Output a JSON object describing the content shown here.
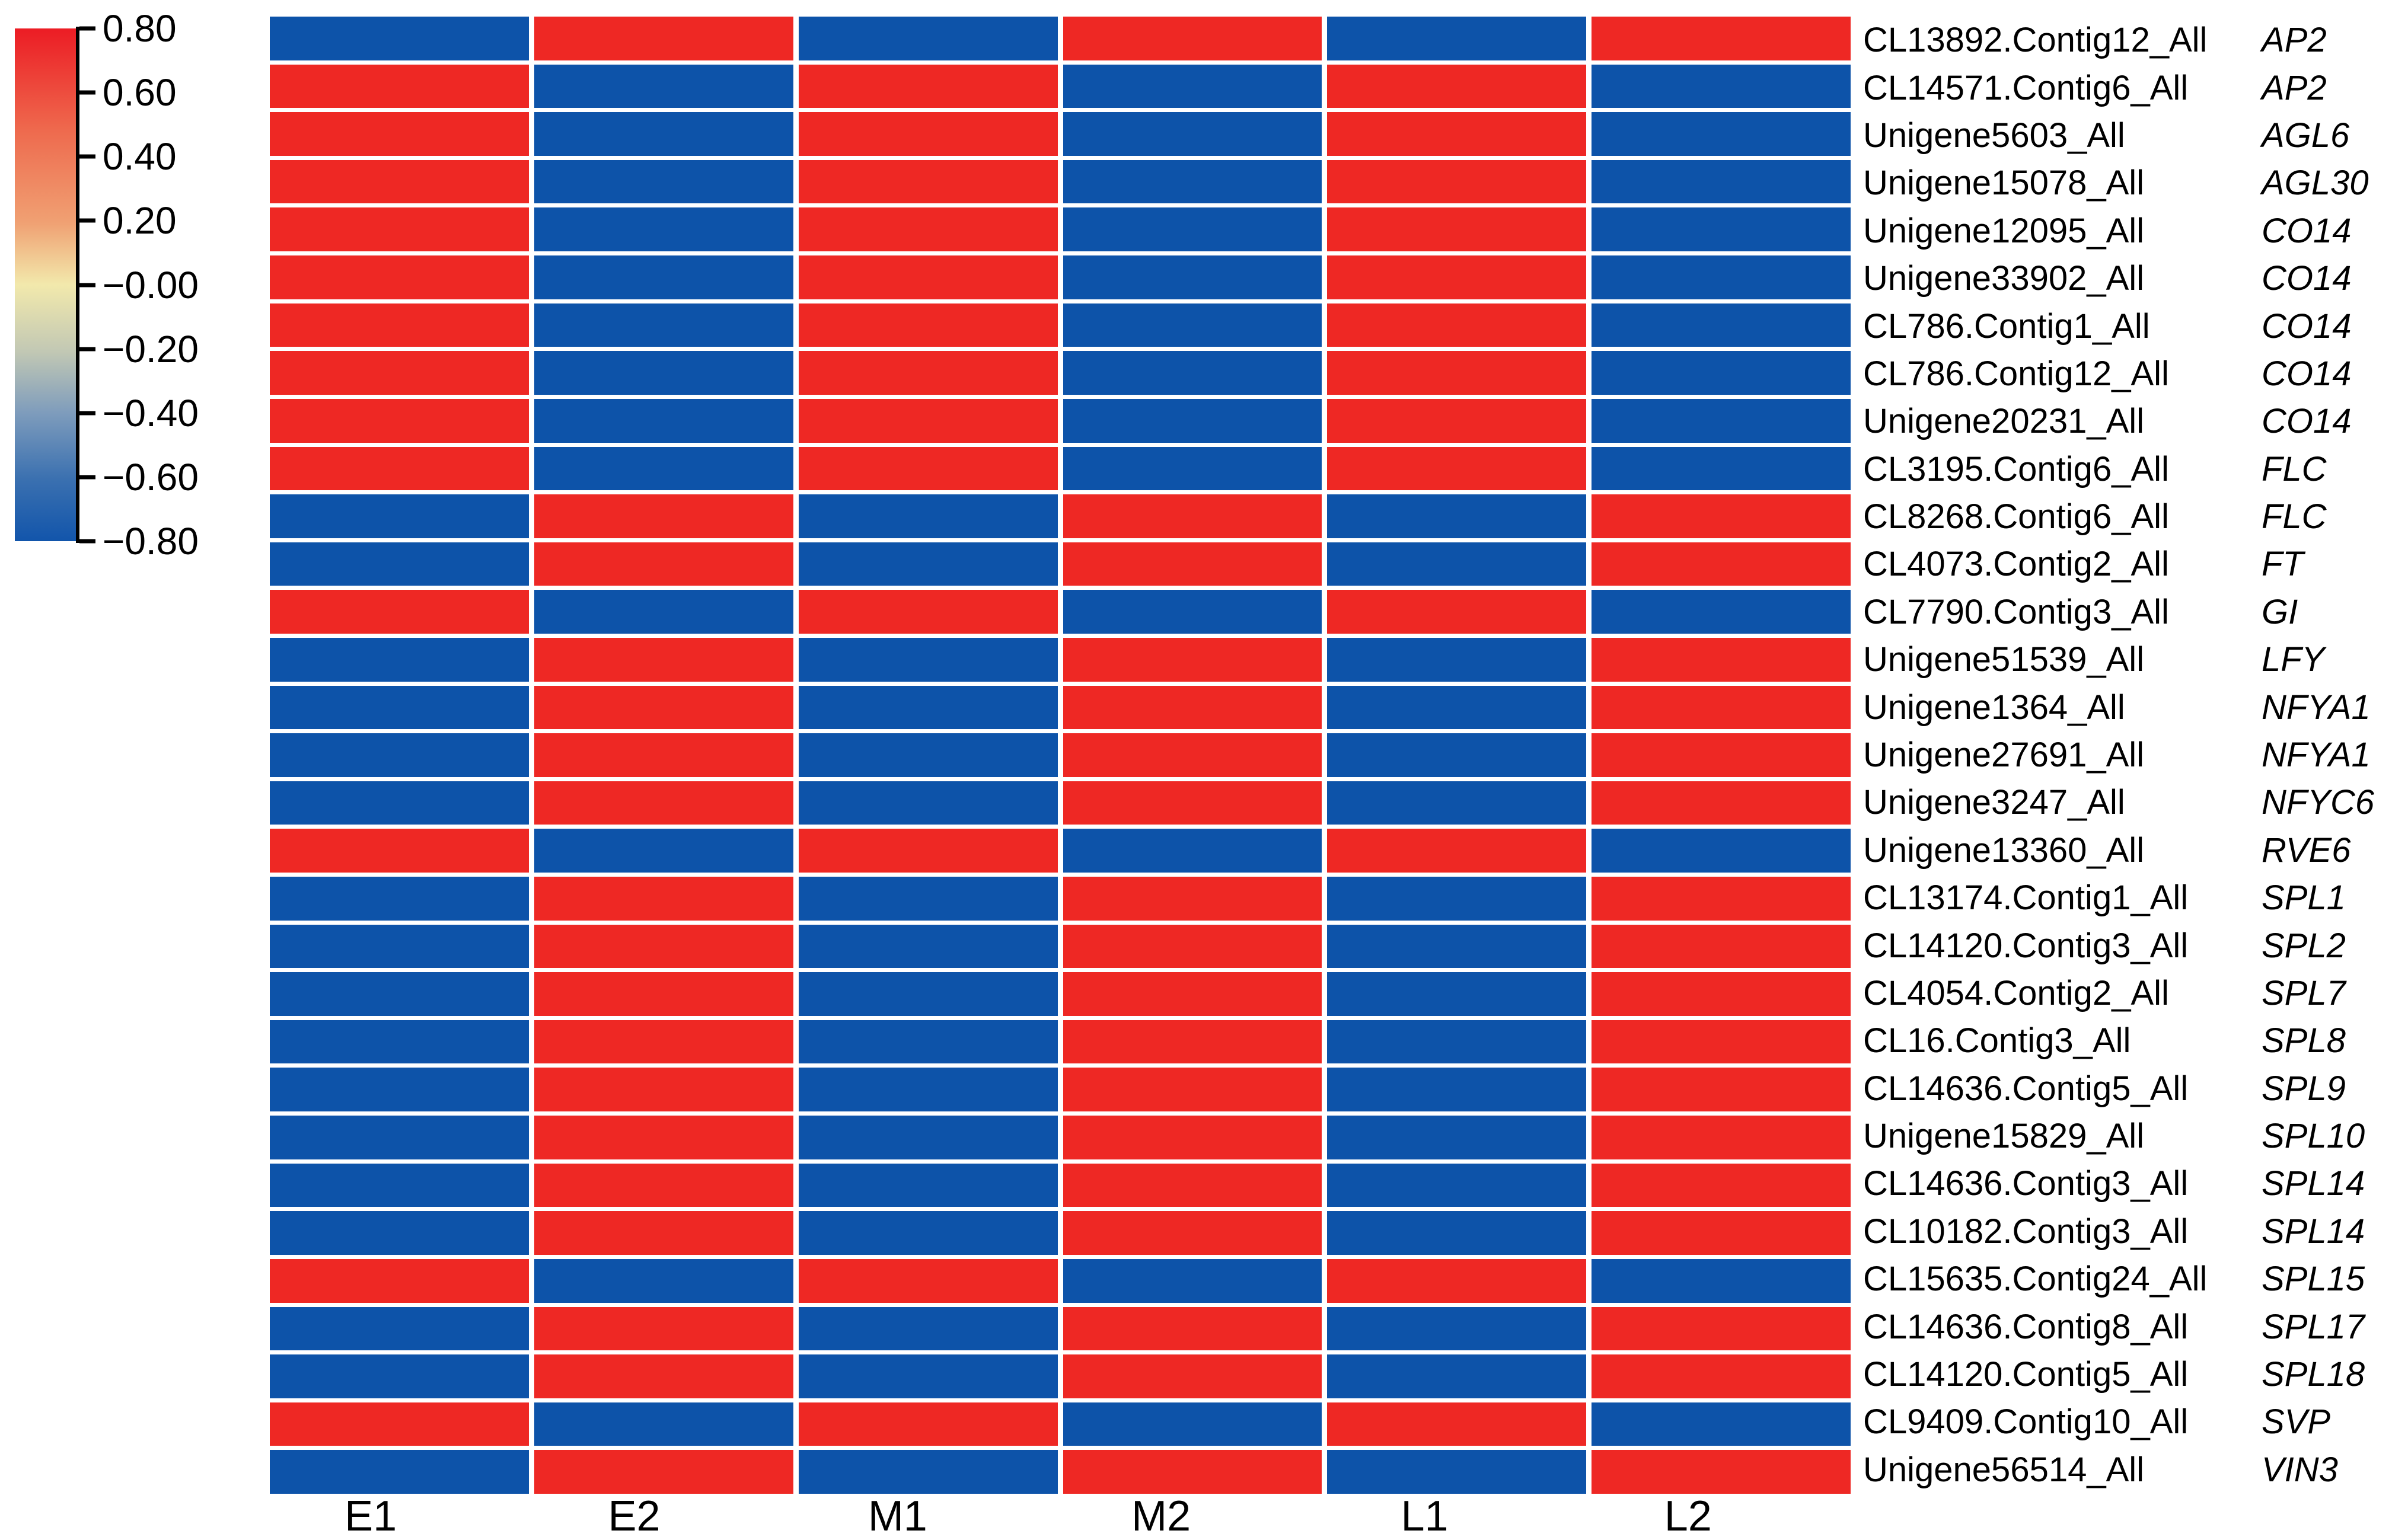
{
  "figure": {
    "background": "#FFFFFF"
  },
  "chart_data": {
    "type": "heatmap",
    "title": "",
    "xlabel": "",
    "ylabel": "",
    "grid": false,
    "legend_position": "left",
    "columns": [
      "E1",
      "E2",
      "M1",
      "M2",
      "L1",
      "L2"
    ],
    "rows": [
      {
        "id": "CL13892.Contig12_All",
        "gene": "AP2",
        "values": [
          -0.8,
          0.8,
          -0.8,
          0.8,
          -0.8,
          0.8
        ]
      },
      {
        "id": "CL14571.Contig6_All",
        "gene": "AP2",
        "values": [
          0.8,
          -0.8,
          0.8,
          -0.8,
          0.8,
          -0.8
        ]
      },
      {
        "id": "Unigene5603_All",
        "gene": "AGL6",
        "values": [
          0.8,
          -0.8,
          0.8,
          -0.8,
          0.8,
          -0.8
        ]
      },
      {
        "id": "Unigene15078_All",
        "gene": "AGL30",
        "values": [
          0.8,
          -0.8,
          0.8,
          -0.8,
          0.8,
          -0.8
        ]
      },
      {
        "id": "Unigene12095_All",
        "gene": "CO14",
        "values": [
          0.8,
          -0.8,
          0.8,
          -0.8,
          0.8,
          -0.8
        ]
      },
      {
        "id": "Unigene33902_All",
        "gene": "CO14",
        "values": [
          0.8,
          -0.8,
          0.8,
          -0.8,
          0.8,
          -0.8
        ]
      },
      {
        "id": "CL786.Contig1_All",
        "gene": "CO14",
        "values": [
          0.8,
          -0.8,
          0.8,
          -0.8,
          0.8,
          -0.8
        ]
      },
      {
        "id": "CL786.Contig12_All",
        "gene": "CO14",
        "values": [
          0.8,
          -0.8,
          0.8,
          -0.8,
          0.8,
          -0.8
        ]
      },
      {
        "id": "Unigene20231_All",
        "gene": "CO14",
        "values": [
          0.8,
          -0.8,
          0.8,
          -0.8,
          0.8,
          -0.8
        ]
      },
      {
        "id": "CL3195.Contig6_All",
        "gene": "FLC",
        "values": [
          0.8,
          -0.8,
          0.8,
          -0.8,
          0.8,
          -0.8
        ]
      },
      {
        "id": "CL8268.Contig6_All",
        "gene": "FLC",
        "values": [
          -0.8,
          0.8,
          -0.8,
          0.8,
          -0.8,
          0.8
        ]
      },
      {
        "id": "CL4073.Contig2_All",
        "gene": "FT",
        "values": [
          -0.8,
          0.8,
          -0.8,
          0.8,
          -0.8,
          0.8
        ]
      },
      {
        "id": "CL7790.Contig3_All",
        "gene": "GI",
        "values": [
          0.8,
          -0.8,
          0.8,
          -0.8,
          0.8,
          -0.8
        ]
      },
      {
        "id": "Unigene51539_All",
        "gene": "LFY",
        "values": [
          -0.8,
          0.8,
          -0.8,
          0.8,
          -0.8,
          0.8
        ]
      },
      {
        "id": "Unigene1364_All",
        "gene": "NFYA1",
        "values": [
          -0.8,
          0.8,
          -0.8,
          0.8,
          -0.8,
          0.8
        ]
      },
      {
        "id": "Unigene27691_All",
        "gene": "NFYA1",
        "values": [
          -0.8,
          0.8,
          -0.8,
          0.8,
          -0.8,
          0.8
        ]
      },
      {
        "id": "Unigene3247_All",
        "gene": "NFYC6",
        "values": [
          -0.8,
          0.8,
          -0.8,
          0.8,
          -0.8,
          0.8
        ]
      },
      {
        "id": "Unigene13360_All",
        "gene": "RVE6",
        "values": [
          0.8,
          -0.8,
          0.8,
          -0.8,
          0.8,
          -0.8
        ]
      },
      {
        "id": "CL13174.Contig1_All",
        "gene": "SPL1",
        "values": [
          -0.8,
          0.8,
          -0.8,
          0.8,
          -0.8,
          0.8
        ]
      },
      {
        "id": "CL14120.Contig3_All",
        "gene": "SPL2",
        "values": [
          -0.8,
          0.8,
          -0.8,
          0.8,
          -0.8,
          0.8
        ]
      },
      {
        "id": "CL4054.Contig2_All",
        "gene": "SPL7",
        "values": [
          -0.8,
          0.8,
          -0.8,
          0.8,
          -0.8,
          0.8
        ]
      },
      {
        "id": "CL16.Contig3_All",
        "gene": "SPL8",
        "values": [
          -0.8,
          0.8,
          -0.8,
          0.8,
          -0.8,
          0.8
        ]
      },
      {
        "id": "CL14636.Contig5_All",
        "gene": "SPL9",
        "values": [
          -0.8,
          0.8,
          -0.8,
          0.8,
          -0.8,
          0.8
        ]
      },
      {
        "id": "Unigene15829_All",
        "gene": "SPL10",
        "values": [
          -0.8,
          0.8,
          -0.8,
          0.8,
          -0.8,
          0.8
        ]
      },
      {
        "id": "CL14636.Contig3_All",
        "gene": "SPL14",
        "values": [
          -0.8,
          0.8,
          -0.8,
          0.8,
          -0.8,
          0.8
        ]
      },
      {
        "id": "CL10182.Contig3_All",
        "gene": "SPL14",
        "values": [
          -0.8,
          0.8,
          -0.8,
          0.8,
          -0.8,
          0.8
        ]
      },
      {
        "id": "CL15635.Contig24_All",
        "gene": "SPL15",
        "values": [
          0.8,
          -0.8,
          0.8,
          -0.8,
          0.8,
          -0.8
        ]
      },
      {
        "id": "CL14636.Contig8_All",
        "gene": "SPL17",
        "values": [
          -0.8,
          0.8,
          -0.8,
          0.8,
          -0.8,
          0.8
        ]
      },
      {
        "id": "CL14120.Contig5_All",
        "gene": "SPL18",
        "values": [
          -0.8,
          0.8,
          -0.8,
          0.8,
          -0.8,
          0.8
        ]
      },
      {
        "id": "CL9409.Contig10_All",
        "gene": "SVP",
        "values": [
          0.8,
          -0.8,
          0.8,
          -0.8,
          0.8,
          -0.8
        ]
      },
      {
        "id": "Unigene56514_All",
        "gene": "VIN3",
        "values": [
          -0.8,
          0.8,
          -0.8,
          0.8,
          -0.8,
          0.8
        ]
      }
    ],
    "colorbar": {
      "range": [
        -0.8,
        0.8
      ],
      "tick_labels": [
        "0.80",
        "0.60",
        "0.40",
        "0.20",
        "−0.00",
        "−0.20",
        "−0.40",
        "−0.60",
        "−0.80"
      ],
      "gradient_stops": [
        {
          "offset": 0,
          "color": "#EC1C24"
        },
        {
          "offset": 20,
          "color": "#EE6A4E"
        },
        {
          "offset": 38,
          "color": "#F0A173"
        },
        {
          "offset": 50,
          "color": "#F2E9AC"
        },
        {
          "offset": 63,
          "color": "#C2C8B4"
        },
        {
          "offset": 75,
          "color": "#7E9CBC"
        },
        {
          "offset": 88,
          "color": "#3A70B0"
        },
        {
          "offset": 100,
          "color": "#1255AB"
        }
      ]
    },
    "cell_colors": {
      "positive": "#EE2824",
      "negative": "#0D53A9"
    }
  }
}
